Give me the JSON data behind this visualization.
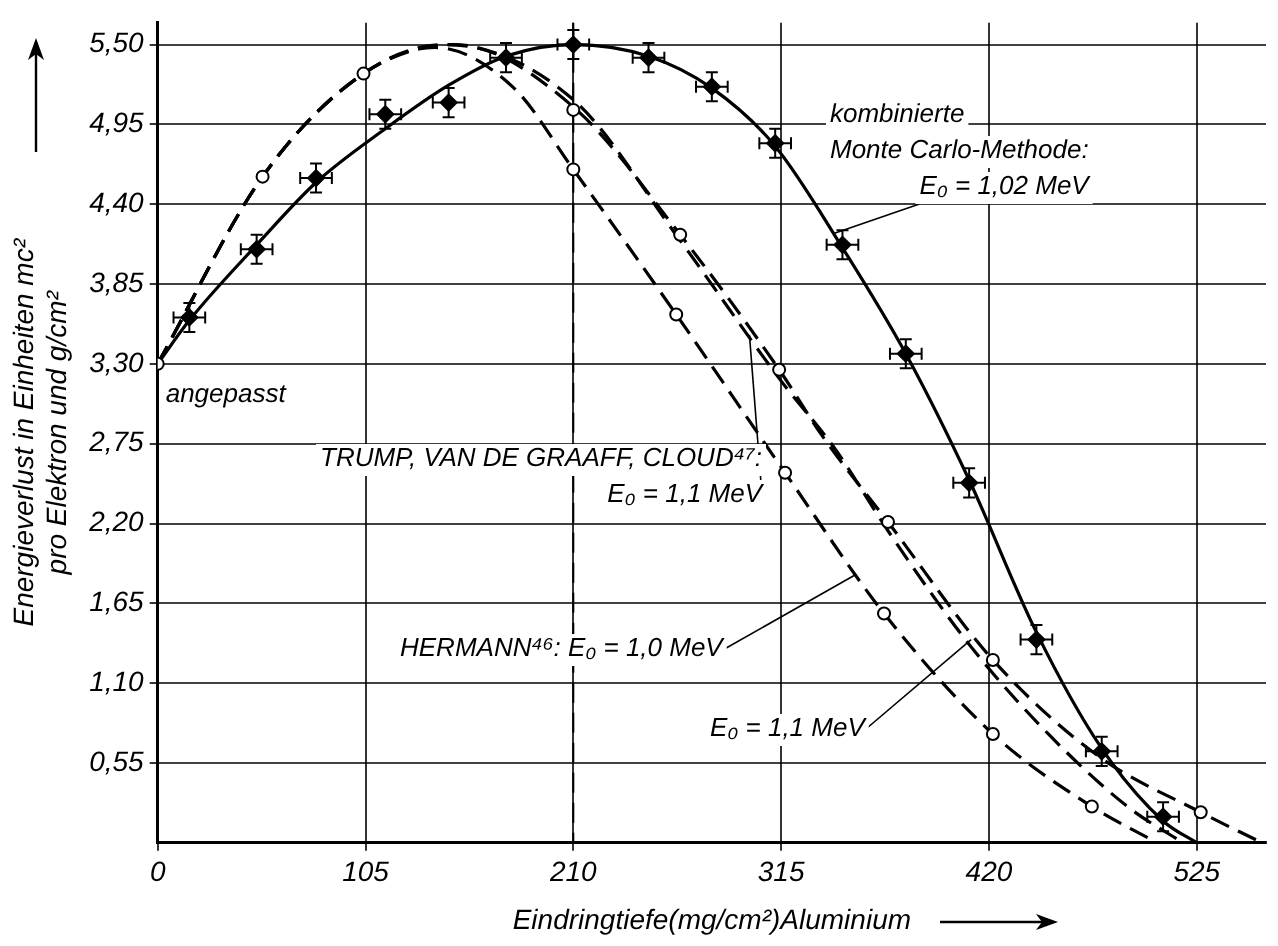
{
  "chart_data": {
    "type": "line",
    "xlabel": "Eindringtiefe(mg/cm²)Aluminium",
    "ylabel": "Energieverlust in Einheiten mc²\npro Elektron und g/cm²",
    "xlim": [
      0,
      560
    ],
    "ylim": [
      0,
      5.65
    ],
    "xticks": [
      0,
      105,
      210,
      315,
      420,
      525
    ],
    "yticks": [
      {
        "value": 0.55,
        "label": "0,55"
      },
      {
        "value": 1.1,
        "label": "1,10"
      },
      {
        "value": 1.65,
        "label": "1,65"
      },
      {
        "value": 2.2,
        "label": "2,20"
      },
      {
        "value": 2.75,
        "label": "2,75"
      },
      {
        "value": 3.3,
        "label": "3,30"
      },
      {
        "value": 3.85,
        "label": "3,85"
      },
      {
        "value": 4.4,
        "label": "4,40"
      },
      {
        "value": 4.95,
        "label": "4,95"
      },
      {
        "value": 5.5,
        "label": "5,50"
      }
    ],
    "grid": true,
    "legend": false,
    "ref_lines": [
      {
        "axis": "x",
        "value": 210,
        "color": "#000000",
        "line_style": "dashed"
      }
    ],
    "series": [
      {
        "color": "#000000",
        "line_style": "solid",
        "marker": "none",
        "x": [
          0,
          16,
          50,
          80,
          115,
          147,
          176,
          210,
          248,
          280,
          312,
          346,
          378,
          410,
          444,
          477,
          508,
          525
        ],
        "values": [
          3.3,
          3.6,
          4.12,
          4.55,
          4.92,
          5.22,
          5.42,
          5.5,
          5.42,
          5.2,
          4.8,
          4.1,
          3.37,
          2.5,
          1.45,
          0.65,
          0.15,
          0
        ]
      },
      {
        "type": "scatter",
        "color": "#000000",
        "marker": "diamond",
        "x": [
          16,
          50,
          80,
          115,
          147,
          176,
          210,
          248,
          280,
          312,
          346,
          378,
          410,
          444,
          477,
          508
        ],
        "values": [
          3.62,
          4.09,
          4.58,
          5.02,
          5.1,
          5.41,
          5.5,
          5.41,
          5.21,
          4.82,
          4.12,
          3.37,
          2.48,
          1.4,
          0.63,
          0.18
        ],
        "errors": [
          0.1,
          0.1,
          0.1,
          0.1,
          0.1,
          0.1,
          0.1,
          0.1,
          0.1,
          0.1,
          0.1,
          0.1,
          0.1,
          0.1,
          0.1,
          0.1
        ],
        "xerrors": [
          8,
          8,
          8,
          8,
          8,
          8,
          8,
          8,
          8,
          8,
          8,
          8,
          8,
          8,
          8,
          8
        ]
      },
      {
        "color": "#000000",
        "line_style": "dashed",
        "marker": "none",
        "x": [
          0,
          53,
          104,
          150,
          210,
          264,
          314,
          336,
          369,
          422,
          475,
          527,
          558
        ],
        "values": [
          3.3,
          4.59,
          5.3,
          5.5,
          5.07,
          4.19,
          3.26,
          2.8,
          2.21,
          1.26,
          0.6,
          0.21,
          0
        ]
      },
      {
        "color": "#000000",
        "line_style": "dashed",
        "marker": "none",
        "x": [
          0,
          53,
          104,
          145,
          210,
          264,
          314,
          343,
          369,
          411,
          450,
          490,
          518
        ],
        "values": [
          3.3,
          4.59,
          5.3,
          5.5,
          5.12,
          4.15,
          3.2,
          2.7,
          2.15,
          1.35,
          0.75,
          0.25,
          0
        ]
      },
      {
        "color": "#000000",
        "line_style": "dashed",
        "marker": "none",
        "x": [
          0,
          53,
          104,
          140,
          180,
          210,
          262,
          317,
          367,
          422,
          472,
          505
        ],
        "values": [
          3.3,
          4.59,
          5.3,
          5.48,
          5.2,
          4.64,
          3.64,
          2.55,
          1.58,
          0.75,
          0.25,
          0
        ]
      },
      {
        "type": "scatter",
        "color": "#000000",
        "marker": "circle",
        "x": [
          0,
          53,
          104,
          210,
          264,
          314,
          369,
          422,
          527,
          210,
          262,
          317,
          367,
          422,
          472
        ],
        "values": [
          3.3,
          4.59,
          5.3,
          5.05,
          4.19,
          3.26,
          2.21,
          1.26,
          0.21,
          4.64,
          3.64,
          2.55,
          1.58,
          0.75,
          0.25
        ]
      }
    ],
    "annotations": [
      {
        "text": "kombinierte\nMonte Carlo-Methode:\nE₀ = 1,02 MeV",
        "x": 342,
        "y": 4.2
      },
      {
        "text": "TRUMP, VAN DE GRAAFF, CLOUD⁴⁷:\nE₀ = 1,1 MeV",
        "x": 299,
        "y": 3.5
      },
      {
        "text": "HERMANN⁴⁶: E₀ = 1,0 MeV",
        "x": 353,
        "y": 1.85
      },
      {
        "text": "E₀ = 1,1 MeV",
        "x": 411,
        "y": 1.4
      },
      {
        "text": "angepasst",
        "x": 0,
        "y": 3.3
      }
    ]
  }
}
